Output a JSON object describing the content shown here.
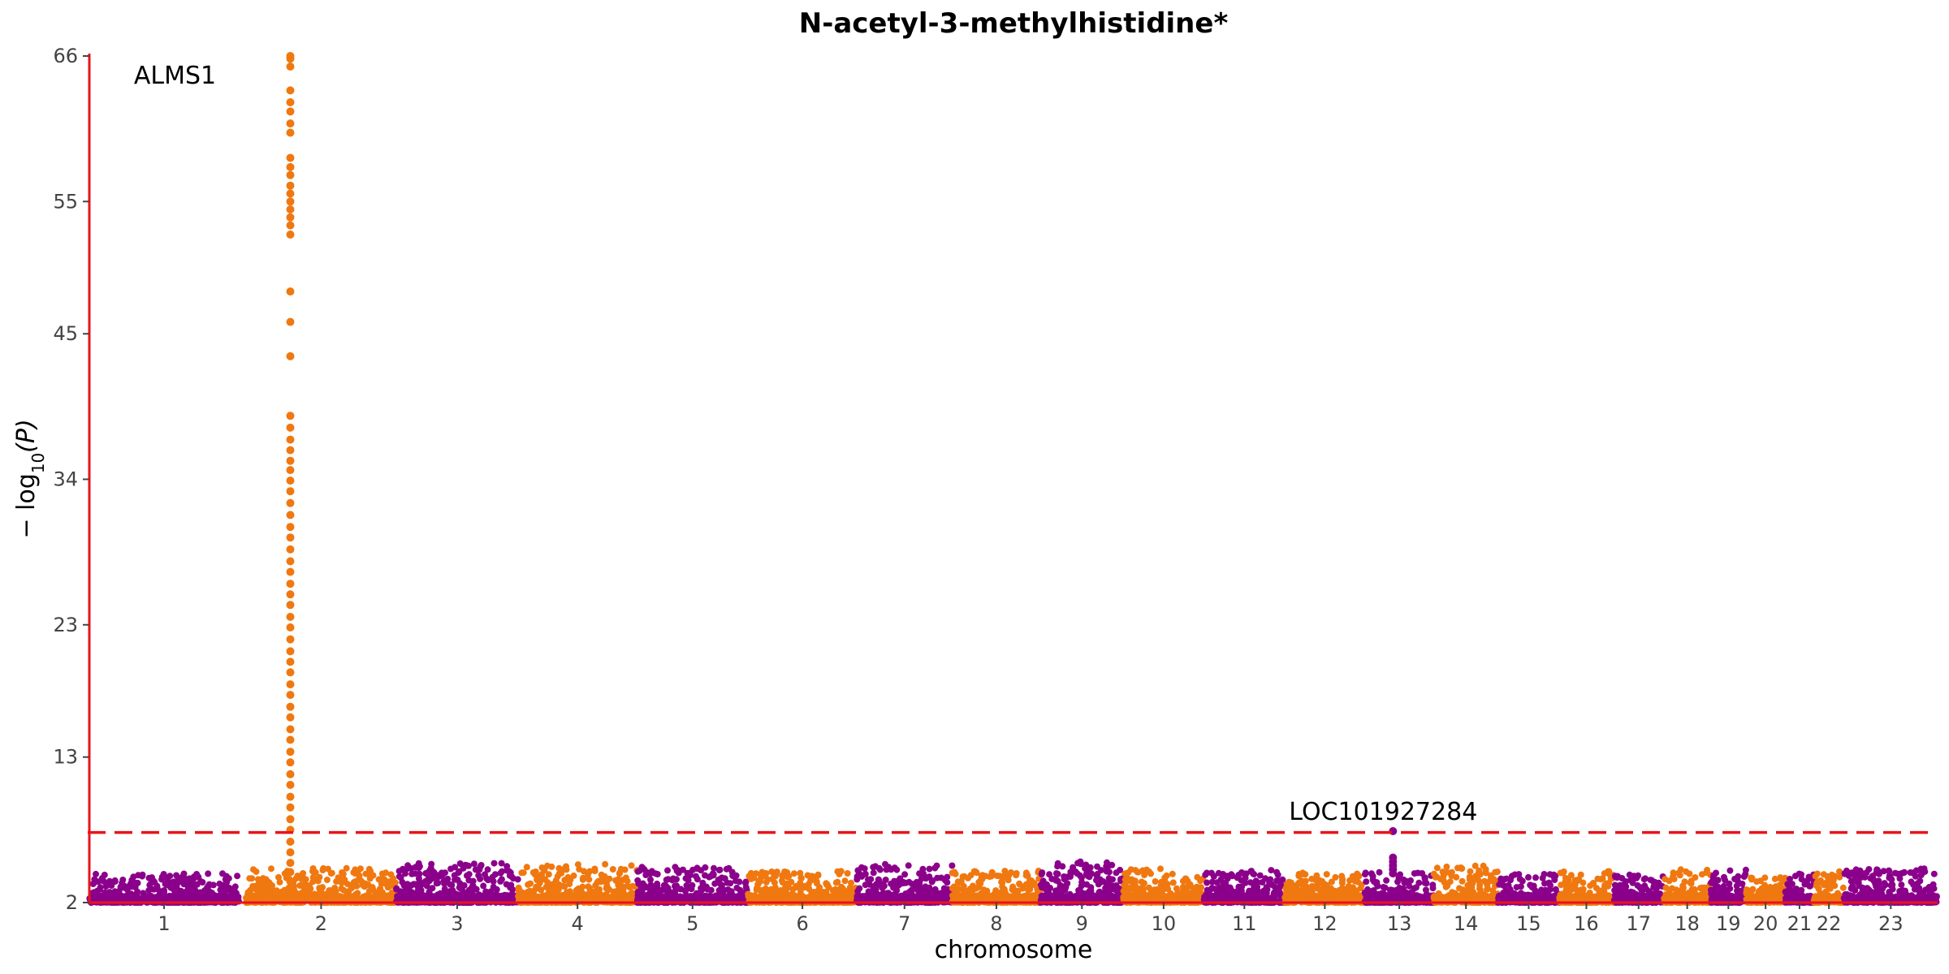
{
  "chart_data": {
    "type": "scatter",
    "title": "N-acetyl-3-methylhistidine*",
    "xlabel": "chromosome",
    "ylabel_main": "− log",
    "ylabel_sub": "10",
    "ylabel_tail": "(P)",
    "ylim": [
      2,
      66
    ],
    "yticks": [
      2,
      13,
      23,
      34,
      45,
      55,
      66
    ],
    "significance_threshold": 7.3,
    "threshold_color": "#e8141b",
    "axis_color": "#e8141b",
    "colors": {
      "odd": "#8b008b",
      "even": "#f07810"
    },
    "grid": false,
    "legend": "none",
    "chromosomes": [
      {
        "label": "1",
        "start": 0,
        "end": 249,
        "peak": 4.2
      },
      {
        "label": "2",
        "start": 261,
        "end": 511,
        "peak": 4.6
      },
      {
        "label": "3",
        "start": 511,
        "end": 714,
        "peak": 5.0
      },
      {
        "label": "4",
        "start": 714,
        "end": 912,
        "peak": 4.9
      },
      {
        "label": "5",
        "start": 912,
        "end": 1097,
        "peak": 4.7
      },
      {
        "label": "6",
        "start": 1097,
        "end": 1278,
        "peak": 4.4
      },
      {
        "label": "7",
        "start": 1278,
        "end": 1437,
        "peak": 4.9
      },
      {
        "label": "8",
        "start": 1437,
        "end": 1584,
        "peak": 4.4
      },
      {
        "label": "9",
        "start": 1584,
        "end": 1722,
        "peak": 5.1
      },
      {
        "label": "10",
        "start": 1722,
        "end": 1856,
        "peak": 4.6
      },
      {
        "label": "11",
        "start": 1856,
        "end": 1991,
        "peak": 4.5
      },
      {
        "label": "12",
        "start": 1991,
        "end": 2124,
        "peak": 4.4
      },
      {
        "label": "13",
        "start": 2124,
        "end": 2239,
        "peak": 4.3
      },
      {
        "label": "14",
        "start": 2239,
        "end": 2346,
        "peak": 4.9
      },
      {
        "label": "15",
        "start": 2346,
        "end": 2448,
        "peak": 4.2
      },
      {
        "label": "16",
        "start": 2448,
        "end": 2538,
        "peak": 4.4
      },
      {
        "label": "17",
        "start": 2538,
        "end": 2622,
        "peak": 4.1
      },
      {
        "label": "18",
        "start": 2622,
        "end": 2700,
        "peak": 4.5
      },
      {
        "label": "19",
        "start": 2700,
        "end": 2759,
        "peak": 4.5
      },
      {
        "label": "20",
        "start": 2759,
        "end": 2824,
        "peak": 4.0
      },
      {
        "label": "21",
        "start": 2824,
        "end": 2872,
        "peak": 4.3
      },
      {
        "label": "22",
        "start": 2872,
        "end": 2922,
        "peak": 4.4
      },
      {
        "label": "23",
        "start": 2922,
        "end": 3078,
        "peak": 4.6
      }
    ],
    "peaks": [
      {
        "chromosome": "2",
        "position": 73.7,
        "top": 66,
        "gene": "ALMS1",
        "values": [
          66,
          65.8,
          65.2,
          63.4,
          62.5,
          61.8,
          60.9,
          60.2,
          58.3,
          57.6,
          57.0,
          56.2,
          55.6,
          55.0,
          54.4,
          53.8,
          53.2,
          52.5,
          48.2,
          45.9,
          43.3,
          38.8,
          37.9,
          37.0,
          36.2,
          35.4,
          34.7,
          33.9,
          33.1,
          32.2,
          31.3,
          30.4,
          29.6,
          28.7,
          27.8,
          27.0,
          26.1,
          25.3,
          24.5,
          23.6,
          22.8,
          21.9,
          21.0,
          20.2,
          19.4,
          18.5,
          17.7,
          16.8,
          16.0,
          15.1,
          14.3,
          13.4,
          12.6,
          11.7,
          10.9,
          10.0,
          9.2,
          8.3,
          7.5,
          6.6,
          5.8,
          5.0,
          4.3,
          3.6
        ]
      },
      {
        "chromosome": "13",
        "position": 47,
        "top": 7.4,
        "gene": "LOC101927284",
        "values": [
          7.4,
          5.4,
          5.1,
          4.8,
          4.5,
          4.2
        ]
      }
    ]
  }
}
